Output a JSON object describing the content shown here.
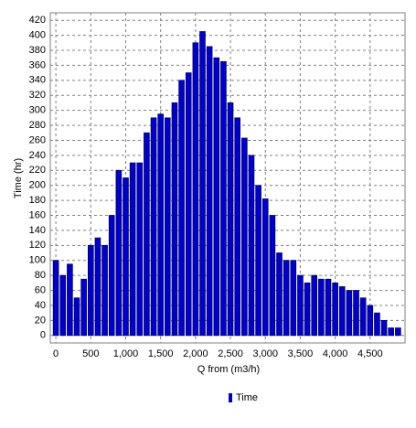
{
  "chart_data": {
    "type": "bar",
    "x_label": "Q from (m3/h)",
    "y_label": "Time (hr)",
    "x": [
      0,
      100,
      200,
      300,
      400,
      500,
      600,
      700,
      800,
      900,
      1000,
      1100,
      1200,
      1300,
      1400,
      1500,
      1600,
      1700,
      1800,
      1900,
      2000,
      2100,
      2200,
      2300,
      2400,
      2500,
      2600,
      2700,
      2800,
      2900,
      3000,
      3100,
      3200,
      3300,
      3400,
      3500,
      3600,
      3700,
      3800,
      3900,
      4000,
      4100,
      4200,
      4300,
      4400,
      4500,
      4600,
      4700,
      4800,
      4900
    ],
    "series": [
      {
        "name": "Time",
        "color": "#0000cd",
        "values": [
          100,
          80,
          95,
          50,
          75,
          120,
          130,
          120,
          160,
          220,
          210,
          230,
          230,
          270,
          290,
          295,
          290,
          310,
          340,
          350,
          390,
          405,
          385,
          370,
          365,
          310,
          290,
          263,
          240,
          200,
          182,
          160,
          110,
          100,
          100,
          80,
          70,
          80,
          75,
          75,
          70,
          65,
          60,
          60,
          50,
          40,
          30,
          20,
          10,
          10
        ]
      }
    ],
    "xlim": [
      -80,
      5000
    ],
    "ylim": [
      -10,
      430
    ],
    "xticks": [
      0,
      500,
      {
        "value": 1000,
        "label": "1,000"
      },
      {
        "value": 1500,
        "label": "1,500"
      },
      {
        "value": 2000,
        "label": "2,000"
      },
      {
        "value": 2500,
        "label": "2,500"
      },
      {
        "value": 3000,
        "label": "3,000"
      },
      {
        "value": 3500,
        "label": "3,500"
      },
      {
        "value": 4000,
        "label": "4,000"
      },
      {
        "value": 4500,
        "label": "4,500"
      }
    ],
    "yticks": [
      0,
      20,
      40,
      60,
      80,
      100,
      120,
      140,
      160,
      180,
      200,
      220,
      240,
      260,
      280,
      300,
      320,
      340,
      360,
      380,
      400,
      420
    ],
    "grid": true,
    "legend": "bottom"
  }
}
